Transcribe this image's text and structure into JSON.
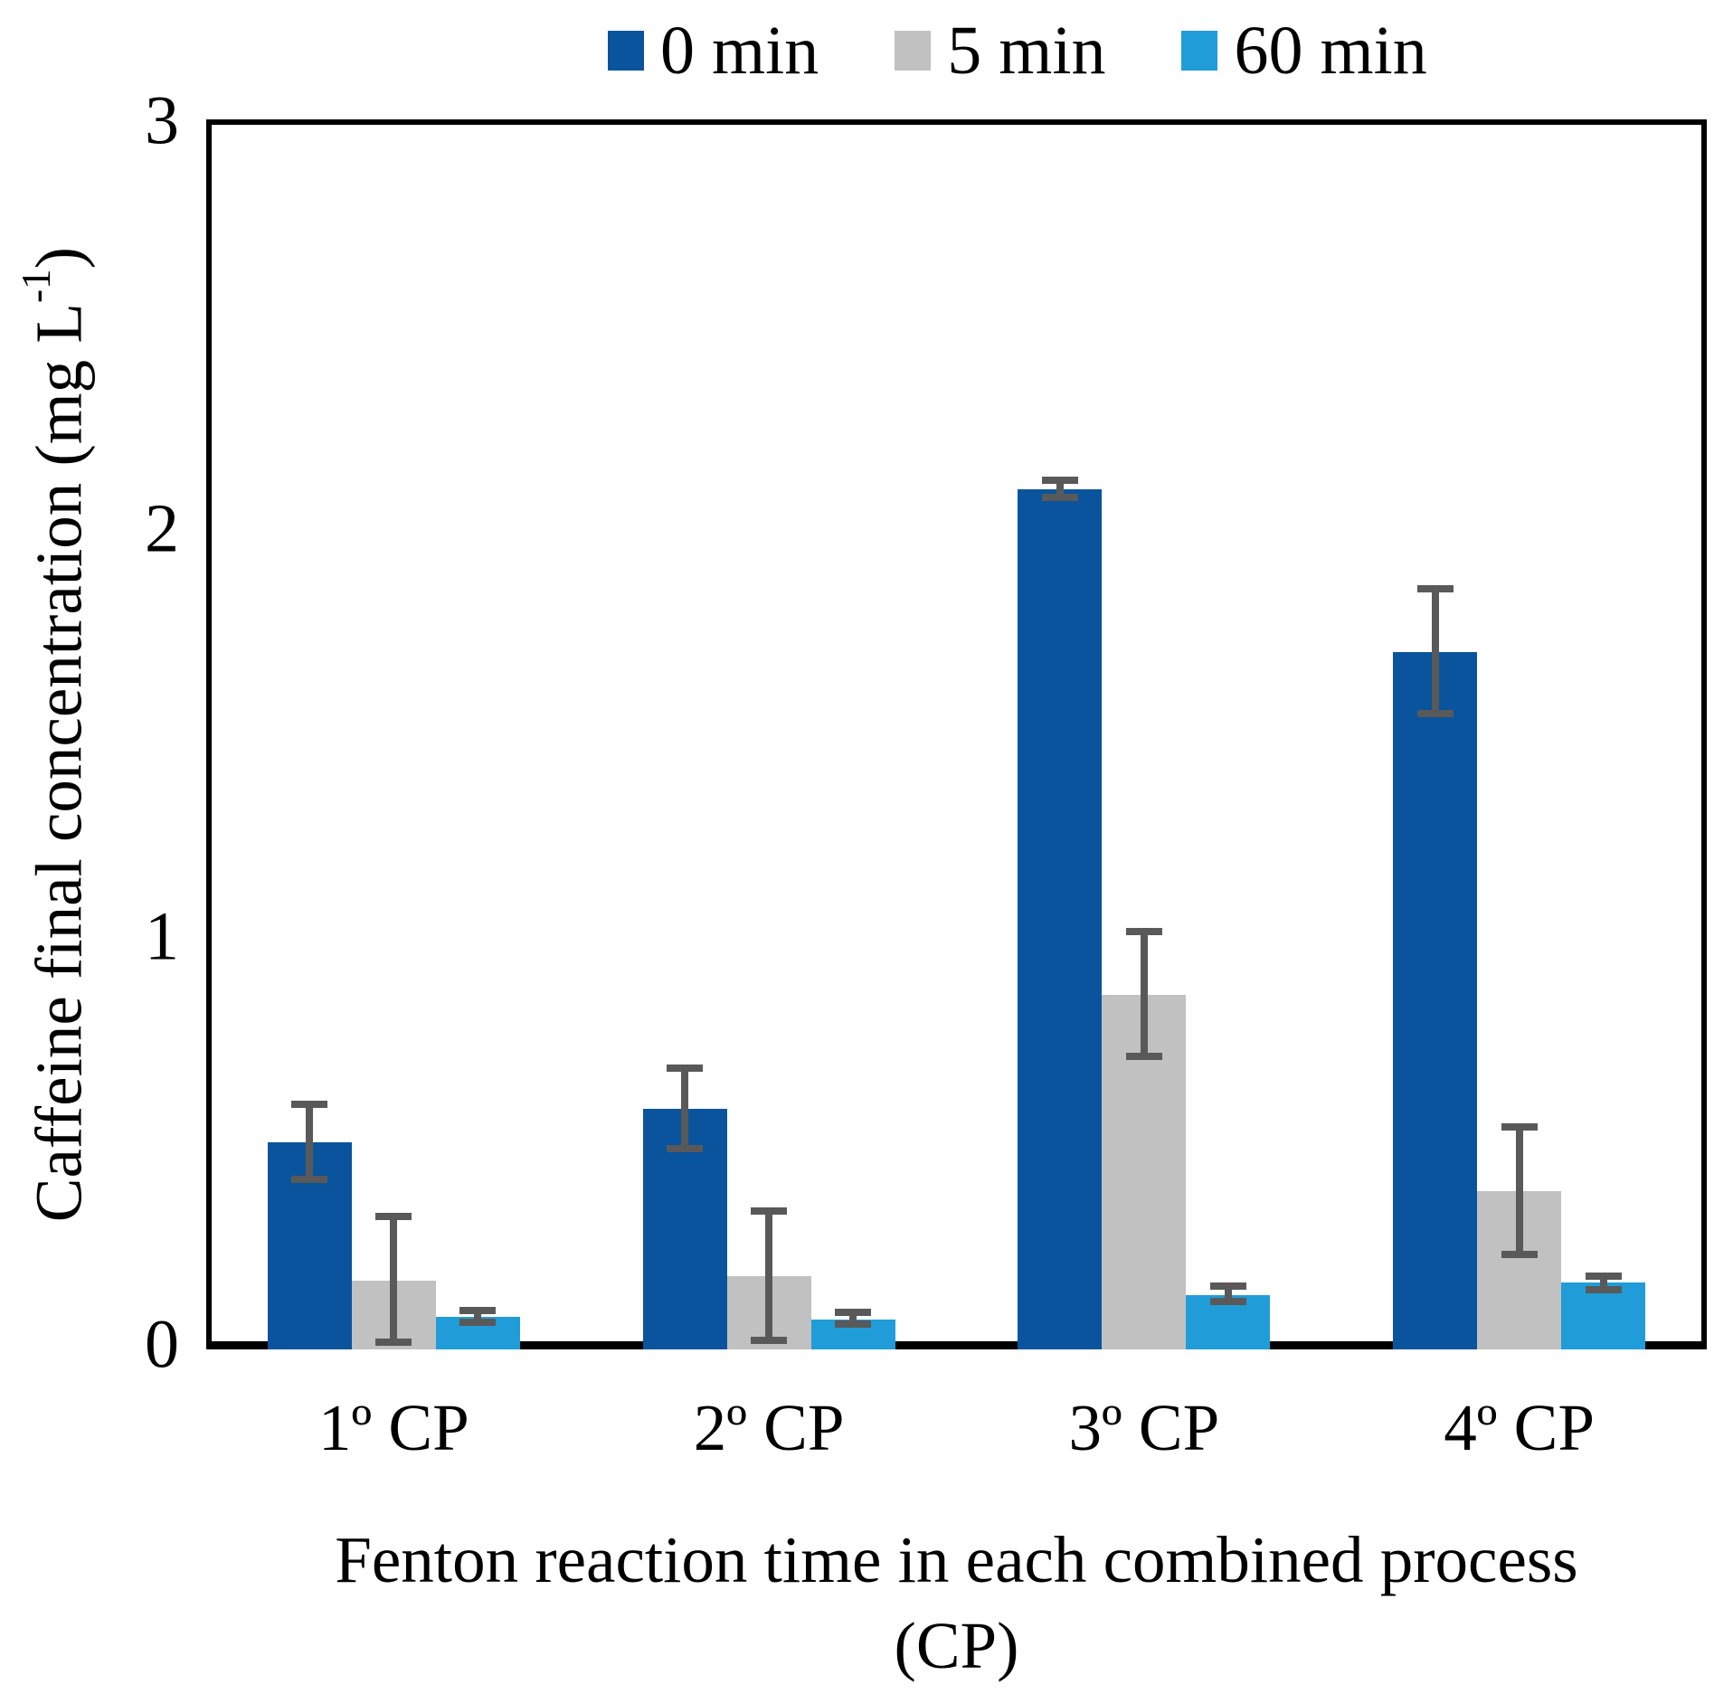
{
  "chart_data": {
    "type": "bar",
    "title": "",
    "categories": [
      "1º CP",
      "2º CP",
      "3º CP",
      "4º CP"
    ],
    "series": [
      {
        "name": "0 min",
        "color": "#0A549D",
        "values": [
          0.5,
          0.58,
          2.1,
          1.7
        ],
        "errors_up": [
          0.1,
          0.11,
          0.03,
          0.165
        ],
        "errors_down": [
          0.1,
          0.105,
          0.03,
          0.16
        ]
      },
      {
        "name": "5 min",
        "color": "#C1C1C1",
        "values": [
          0.16,
          0.17,
          0.86,
          0.38
        ],
        "errors_up": [
          0.165,
          0.17,
          0.165,
          0.165
        ],
        "errors_down": [
          0.16,
          0.165,
          0.16,
          0.165
        ]
      },
      {
        "name": "60 min",
        "color": "#209DD8",
        "values": [
          0.07,
          0.065,
          0.125,
          0.155
        ],
        "errors_up": [
          0.025,
          0.025,
          0.03,
          0.025
        ],
        "errors_down": [
          0.022,
          0.021,
          0.026,
          0.026
        ]
      }
    ],
    "error_bar_color": "#595959",
    "yticks": [
      0,
      1,
      2,
      3
    ],
    "ylim": [
      0,
      3
    ],
    "grid": "off",
    "legend_position": "top",
    "xlabel_line1": "Fenton reaction time in each combined process",
    "xlabel_line2": "(CP)",
    "ylabel_pre": "Caffeine final concentration (mg L",
    "ylabel_sup": "-1",
    "ylabel_post": ")"
  }
}
